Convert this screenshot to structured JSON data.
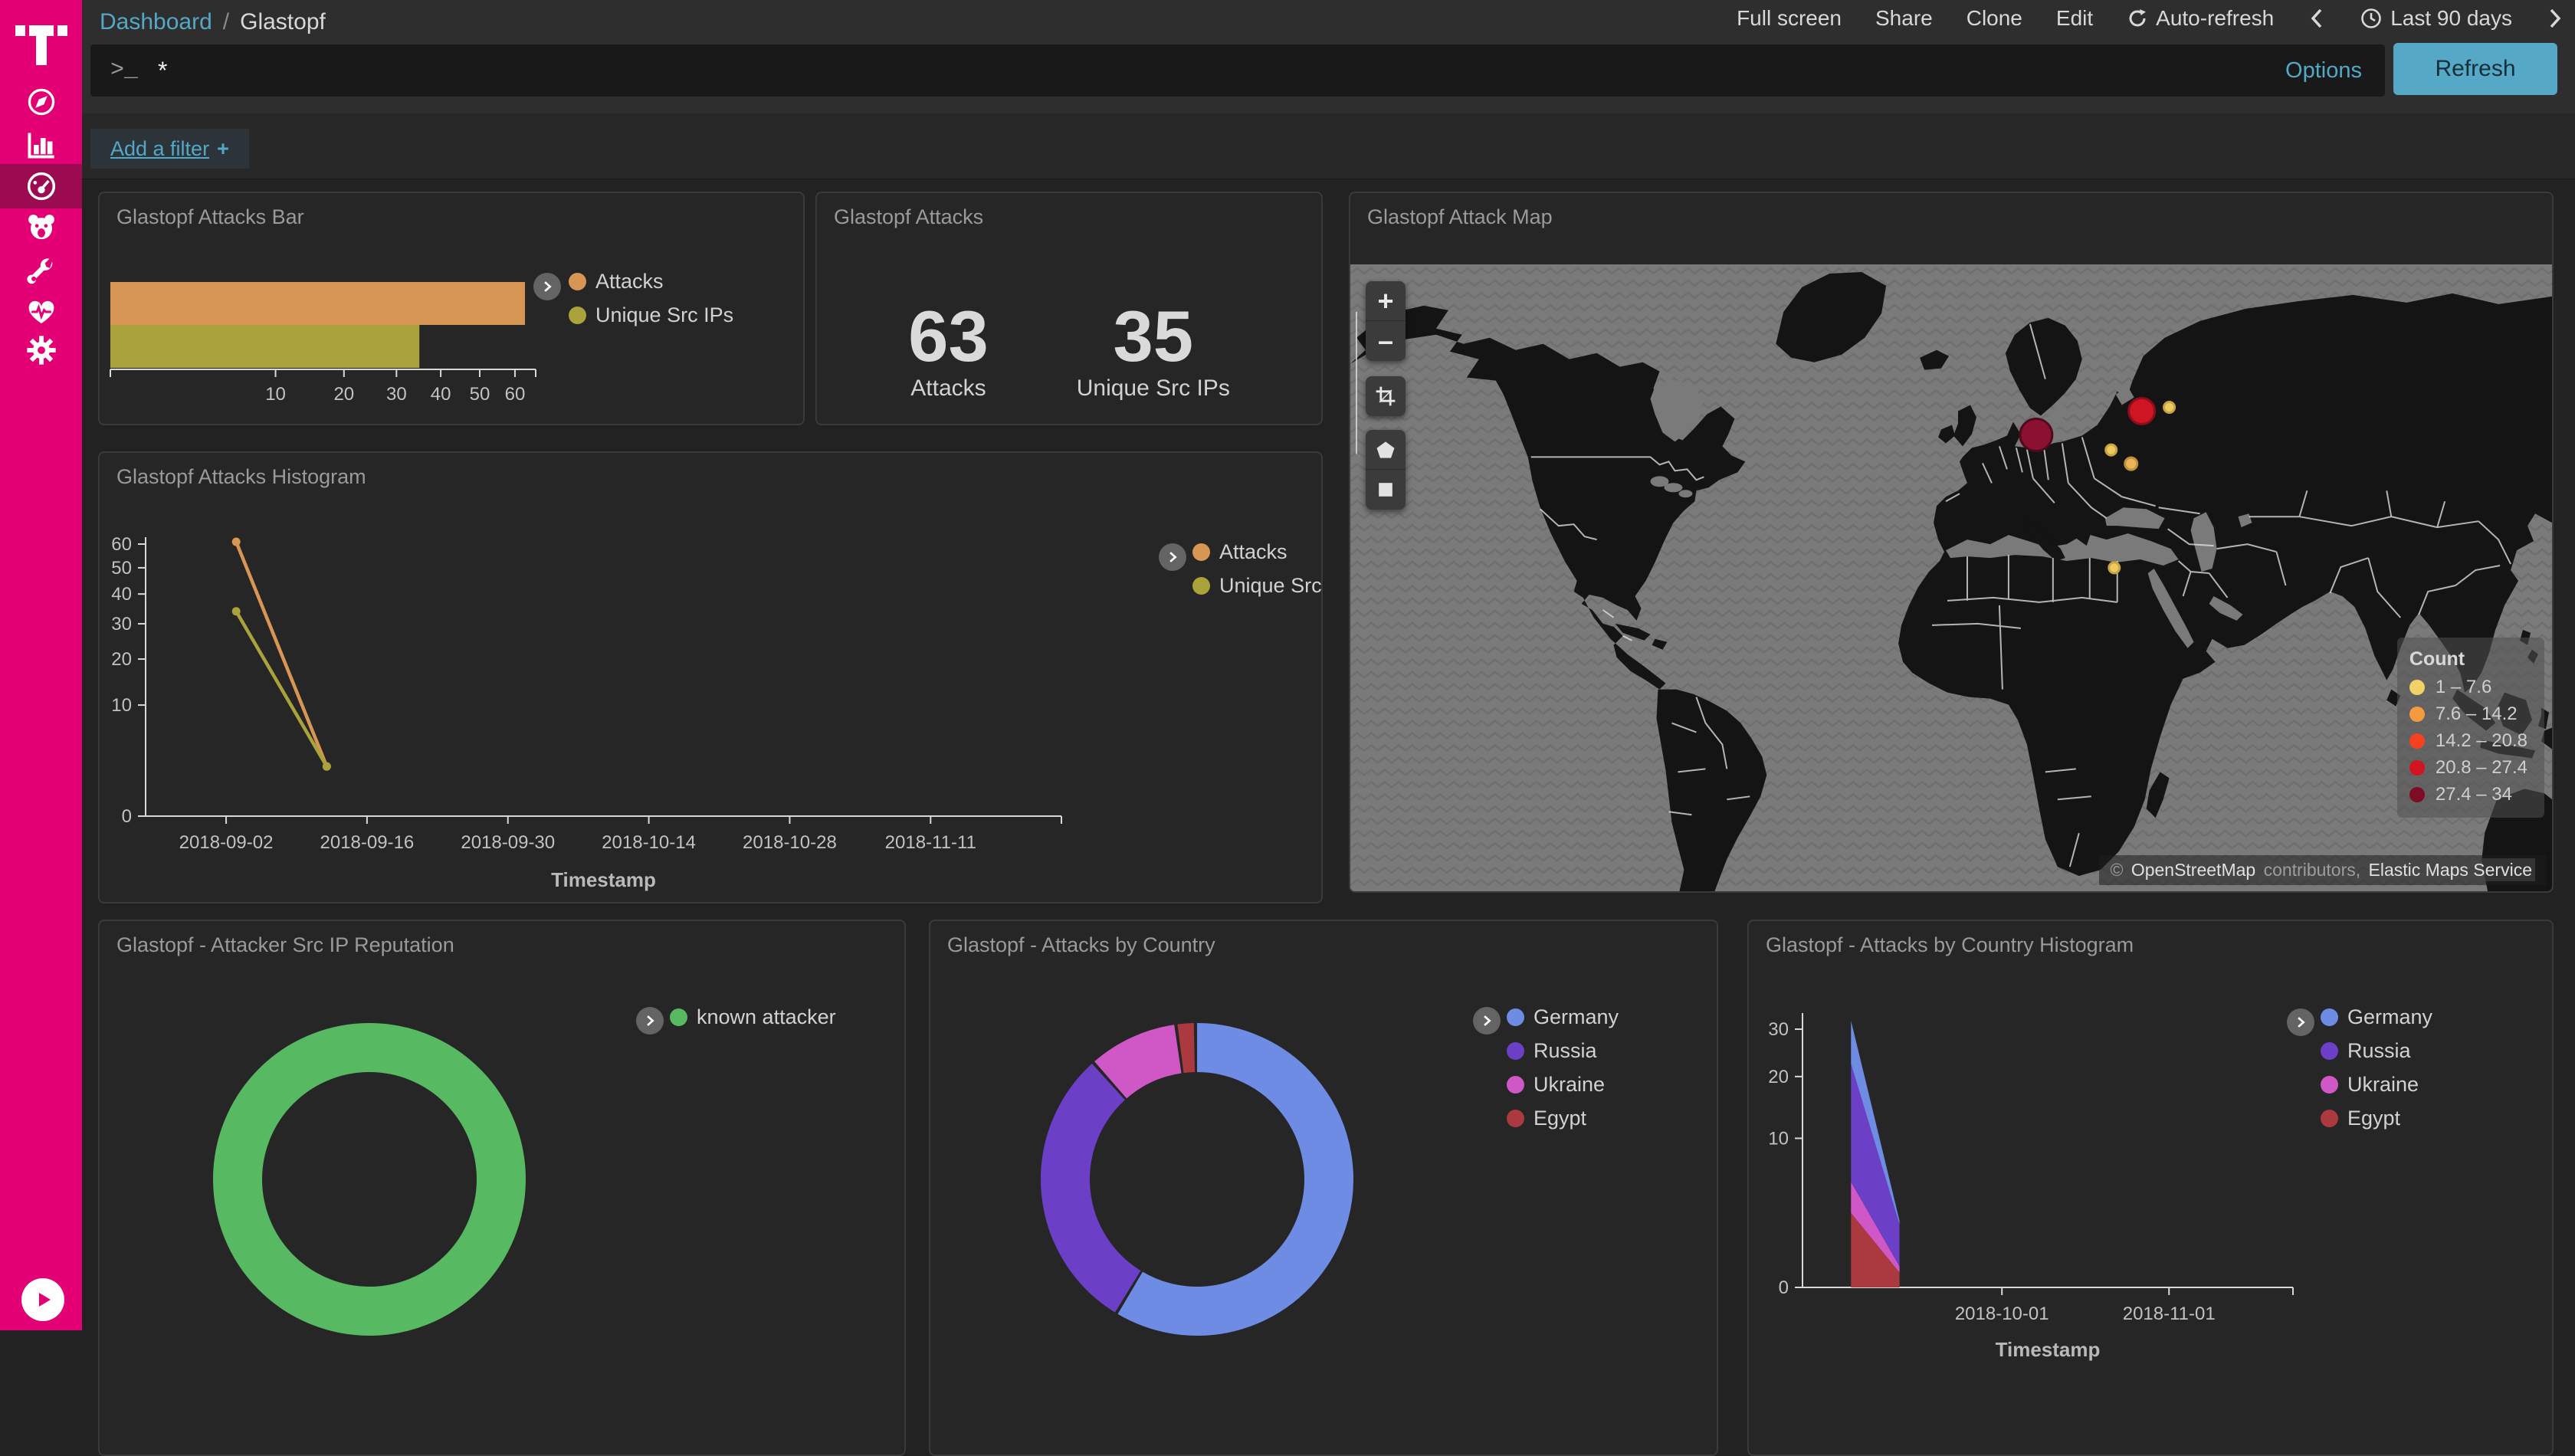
{
  "topbar": {
    "breadcrumb": {
      "link": "Dashboard",
      "sep": "/",
      "current": "Glastopf"
    },
    "menu": {
      "full_screen": "Full screen",
      "share": "Share",
      "clone": "Clone",
      "edit": "Edit",
      "auto_refresh": "Auto-refresh",
      "time_range": "Last 90 days"
    }
  },
  "querybar": {
    "query": "*",
    "options": "Options",
    "refresh": "Refresh"
  },
  "filterbar": {
    "add_filter": "Add a filter",
    "plus": "+"
  },
  "panels": {
    "bar": {
      "title": "Glastopf Attacks Bar"
    },
    "metric": {
      "title": "Glastopf Attacks",
      "metrics": [
        {
          "value": "63",
          "label": "Attacks"
        },
        {
          "value": "35",
          "label": "Unique Src IPs"
        }
      ]
    },
    "map": {
      "title": "Glastopf Attack Map",
      "legend_title": "Count",
      "attribution": {
        "prefix": "©",
        "link1": "OpenStreetMap",
        "middle": " contributors, ",
        "link2": "Elastic Maps Service"
      }
    },
    "histogram": {
      "title": "Glastopf Attacks Histogram"
    },
    "reputation": {
      "title": "Glastopf - Attacker Src IP Reputation"
    },
    "country": {
      "title": "Glastopf - Attacks by Country"
    },
    "country_histogram": {
      "title": "Glastopf - Attacks by Country Histogram"
    }
  },
  "chart_data": [
    {
      "id": "attacks_bar",
      "type": "bar",
      "orientation": "horizontal",
      "scale_x": "sqrt",
      "categories": [
        "Attacks",
        "Unique Src IPs"
      ],
      "values": [
        63,
        35
      ],
      "colors": [
        "#d89654",
        "#aaa23b"
      ],
      "x_ticks": [
        10,
        20,
        30,
        40,
        50,
        60
      ],
      "xlim": [
        0,
        63
      ],
      "legend": [
        "Attacks",
        "Unique Src IPs"
      ],
      "legend_position": "right",
      "title": "Glastopf Attacks Bar",
      "grid": false
    },
    {
      "id": "attacks_metric",
      "type": "table",
      "values": [
        {
          "label": "Attacks",
          "value": 63
        },
        {
          "label": "Unique Src IPs",
          "value": 35
        }
      ],
      "title": "Glastopf Attacks"
    },
    {
      "id": "attack_map",
      "type": "heatmap",
      "title": "Glastopf Attack Map",
      "legend_title": "Count",
      "buckets": [
        {
          "range": "1 – 7.6",
          "color": "#f2d266"
        },
        {
          "range": "7.6 – 14.2",
          "color": "#f59a3d"
        },
        {
          "range": "14.2 – 20.8",
          "color": "#f6411f"
        },
        {
          "range": "20.8 – 27.4",
          "color": "#d31321"
        },
        {
          "range": "27.4 – 34",
          "color": "#7c0d24"
        }
      ],
      "points": [
        {
          "x": 0.5707,
          "y": 0.272,
          "r": 21,
          "color": "#8c1030",
          "stroke": "#4f0a1f",
          "note": "27.4-34 bucket, central Europe"
        },
        {
          "x": 0.6586,
          "y": 0.234,
          "r": 17,
          "color": "#ce1523",
          "stroke": "#8e0d1c",
          "note": "20.8-27.4 bucket, western Russia"
        },
        {
          "x": 0.6815,
          "y": 0.228,
          "r": 7,
          "color": "#edcb63",
          "stroke": "#c9a43f",
          "note": "1-7.6 bucket"
        },
        {
          "x": 0.6331,
          "y": 0.296,
          "r": 7,
          "color": "#edcb63",
          "stroke": "#c9a43f",
          "note": "1-7.6 bucket"
        },
        {
          "x": 0.6497,
          "y": 0.318,
          "r": 8,
          "color": "#eab559",
          "stroke": "#c08f3a",
          "note": "1-7.6 bucket"
        },
        {
          "x": 0.6357,
          "y": 0.484,
          "r": 7,
          "color": "#edcb63",
          "stroke": "#c9a43f",
          "note": "1-7.6 bucket, eastern Mediterranean"
        }
      ]
    },
    {
      "id": "attacks_histogram",
      "type": "line",
      "scale_y": "sqrt",
      "x_domain": [
        "2018-08-25",
        "2018-11-24"
      ],
      "x_ticks": [
        "2018-09-02",
        "2018-09-16",
        "2018-09-30",
        "2018-10-14",
        "2018-10-28",
        "2018-11-11"
      ],
      "y_ticks": [
        0,
        10,
        20,
        30,
        40,
        50,
        60
      ],
      "ylim": [
        0,
        65
      ],
      "xlabel": "Timestamp",
      "ylabel": "",
      "legend": [
        "Attacks",
        "Unique Src IPs"
      ],
      "legend_position": "right",
      "grid": false,
      "series": [
        {
          "name": "Attacks",
          "color": "#d89654",
          "points": [
            [
              "2018-09-03",
              61
            ],
            [
              "2018-09-12",
              2
            ]
          ]
        },
        {
          "name": "Unique Src IPs",
          "color": "#aaa23b",
          "points": [
            [
              "2018-09-03",
              34
            ],
            [
              "2018-09-12",
              2
            ]
          ]
        }
      ],
      "title": "Glastopf Attacks Histogram"
    },
    {
      "id": "src_ip_reputation",
      "type": "pie",
      "donut": true,
      "labels": [
        "known attacker"
      ],
      "values": [
        100
      ],
      "colors": [
        "#57b961"
      ],
      "legend_position": "right",
      "title": "Glastopf - Attacker Src IP Reputation",
      "note": "values are percent of ring"
    },
    {
      "id": "attacks_by_country",
      "type": "pie",
      "donut": true,
      "labels": [
        "Germany",
        "Russia",
        "Ukraine",
        "Egypt"
      ],
      "values": [
        58.8,
        29.8,
        9.4,
        2.0
      ],
      "colors": [
        "#6e8ce4",
        "#6b3fc6",
        "#d058c6",
        "#aa3a40"
      ],
      "legend_position": "right",
      "title": "Glastopf - Attacks by Country",
      "note": "values are estimated percent read from arc angles"
    },
    {
      "id": "attacks_by_country_histogram",
      "type": "area",
      "stacked": true,
      "scale_y": "sqrt",
      "x_domain": [
        "2018-08-25",
        "2018-11-24"
      ],
      "x_ticks": [
        "2018-10-01",
        "2018-11-01"
      ],
      "y_ticks": [
        0,
        10,
        20,
        30
      ],
      "ylim": [
        0,
        33
      ],
      "xlabel": "Timestamp",
      "legend": [
        "Germany",
        "Russia",
        "Ukraine",
        "Egypt"
      ],
      "legend_position": "right",
      "grid": false,
      "stack_order_bottom_to_top": [
        "Egypt",
        "Ukraine",
        "Russia",
        "Germany"
      ],
      "series": [
        {
          "name": "Germany",
          "color": "#6e8ce4",
          "points": [
            [
              "2018-09-03",
              9.5
            ],
            [
              "2018-09-12",
              0.2
            ]
          ]
        },
        {
          "name": "Russia",
          "color": "#6b3fc6",
          "points": [
            [
              "2018-09-03",
              17.5
            ],
            [
              "2018-09-12",
              1.6
            ]
          ]
        },
        {
          "name": "Ukraine",
          "color": "#d058c6",
          "points": [
            [
              "2018-09-03",
              2.5
            ],
            [
              "2018-09-12",
              0.1
            ]
          ]
        },
        {
          "name": "Egypt",
          "color": "#aa3a40",
          "points": [
            [
              "2018-09-03",
              2.5
            ],
            [
              "2018-09-12",
              0.1
            ]
          ]
        }
      ],
      "title": "Glastopf - Attacks by Country Histogram"
    }
  ]
}
